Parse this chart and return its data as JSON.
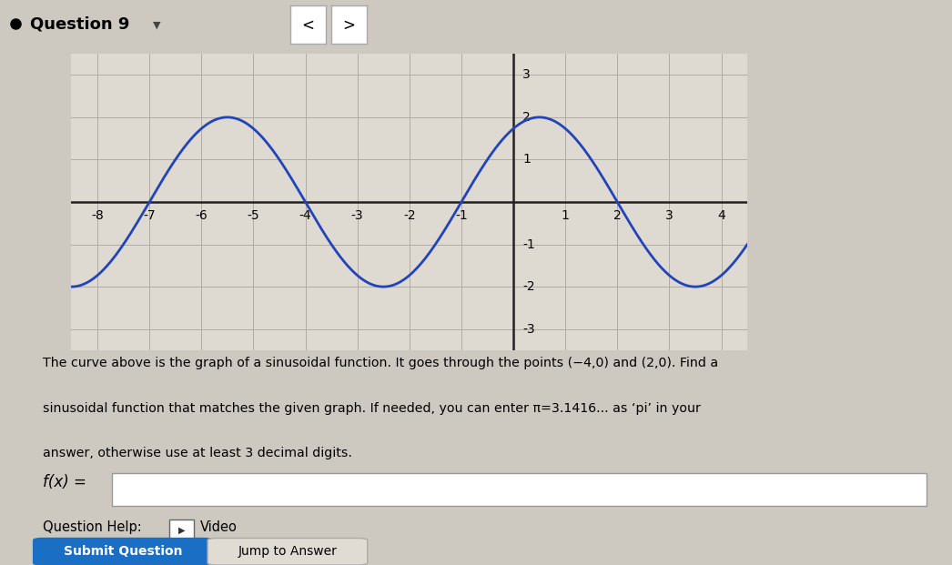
{
  "fig_width": 10.46,
  "fig_height": 6.21,
  "bg_color": "#cdc9c0",
  "graph_bg_color": "#dedad2",
  "header_bg": "#ede8df",
  "graph_xlim": [
    -8.5,
    4.5
  ],
  "graph_ylim": [
    -3.5,
    3.5
  ],
  "xticks": [
    -8,
    -7,
    -6,
    -5,
    -4,
    -3,
    -2,
    -1,
    1,
    2,
    3,
    4
  ],
  "yticks": [
    -3,
    -2,
    -1,
    1,
    2,
    3
  ],
  "curve_color": "#2244bb",
  "curve_lw": 2.0,
  "amplitude": 2.0,
  "period": 6.0,
  "description_line1": "The curve above is the graph of a sinusoidal function. It goes through the points (−4,0) and (2,0). Find a",
  "description_line2": "sinusoidal function that matches the given graph. If needed, you can enter π=3.1416... as ‘pi’ in your",
  "description_line3": "answer, otherwise use at least 3 decimal digits.",
  "fx_label": "f(x) =",
  "question_help_text": "Question Help:",
  "video_text": "Video",
  "submit_btn_text": "Submit Question",
  "jump_btn_text": "Jump to Answer",
  "submit_btn_color": "#1a6fc4",
  "submit_text_color": "#ffffff"
}
